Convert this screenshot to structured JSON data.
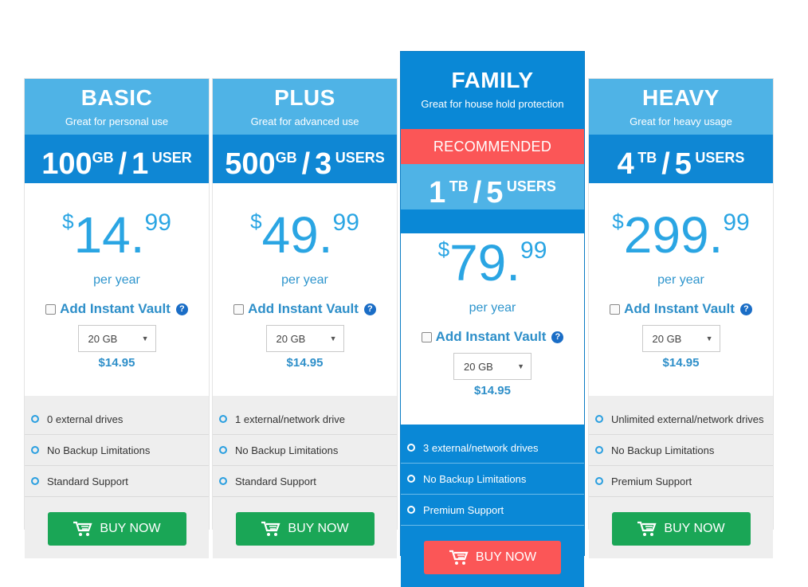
{
  "plans": [
    {
      "name": "BASIC",
      "subtitle": "Great for personal use",
      "storage_amount": "100",
      "storage_unit": "GB",
      "users_count": "1",
      "users_label": "USER",
      "currency": "$",
      "price_int": "14",
      "price_cents": "99",
      "period": "per year",
      "addon_label": "Add Instant Vault",
      "addon_checked": false,
      "addon_select_value": "20 GB",
      "addon_price": "$14.95",
      "features": [
        "0 external drives",
        "No Backup Limitations",
        "Standard Support"
      ],
      "buy_label": "BUY NOW"
    },
    {
      "name": "PLUS",
      "subtitle": "Great for advanced use",
      "storage_amount": "500",
      "storage_unit": "GB",
      "users_count": "3",
      "users_label": "USERS",
      "currency": "$",
      "price_int": "49",
      "price_cents": "99",
      "period": "per year",
      "addon_label": "Add Instant Vault",
      "addon_checked": false,
      "addon_select_value": "20 GB",
      "addon_price": "$14.95",
      "features": [
        "1 external/network drive",
        "No Backup Limitations",
        "Standard Support"
      ],
      "buy_label": "BUY NOW"
    },
    {
      "name": "FAMILY",
      "subtitle": "Great for house hold protection",
      "badge": "RECOMMENDED",
      "storage_amount": "1",
      "storage_unit": "TB",
      "users_count": "5",
      "users_label": "USERS",
      "currency": "$",
      "price_int": "79",
      "price_cents": "99",
      "period": "per year",
      "addon_label": "Add Instant Vault",
      "addon_checked": false,
      "addon_select_value": "20 GB",
      "addon_price": "$14.95",
      "features": [
        "3 external/network drives",
        "No Backup Limitations",
        "Premium Support"
      ],
      "buy_label": "BUY NOW"
    },
    {
      "name": "HEAVY",
      "subtitle": "Great for heavy usage",
      "storage_amount": "4",
      "storage_unit": "TB",
      "users_count": "5",
      "users_label": "USERS",
      "currency": "$",
      "price_int": "299",
      "price_cents": "99",
      "period": "per year",
      "addon_label": "Add Instant Vault",
      "addon_checked": false,
      "addon_select_value": "20 GB",
      "addon_price": "$14.95",
      "features": [
        "Unlimited external/network drives",
        "No Backup Limitations",
        "Premium Support"
      ],
      "buy_label": "BUY NOW"
    }
  ],
  "icons": {
    "feature_bullet": "circle-bullet-icon",
    "help": "question-icon",
    "cart": "cart-icon",
    "dropdown": "chevron-down-icon"
  },
  "colors": {
    "header_light_blue": "#4fb3e6",
    "header_dark_blue": "#0f87d4",
    "price_blue": "#2aa5e3",
    "featured_bg": "#0a88d6",
    "recommended_red": "#fb5657",
    "buy_green": "#1aa656"
  }
}
